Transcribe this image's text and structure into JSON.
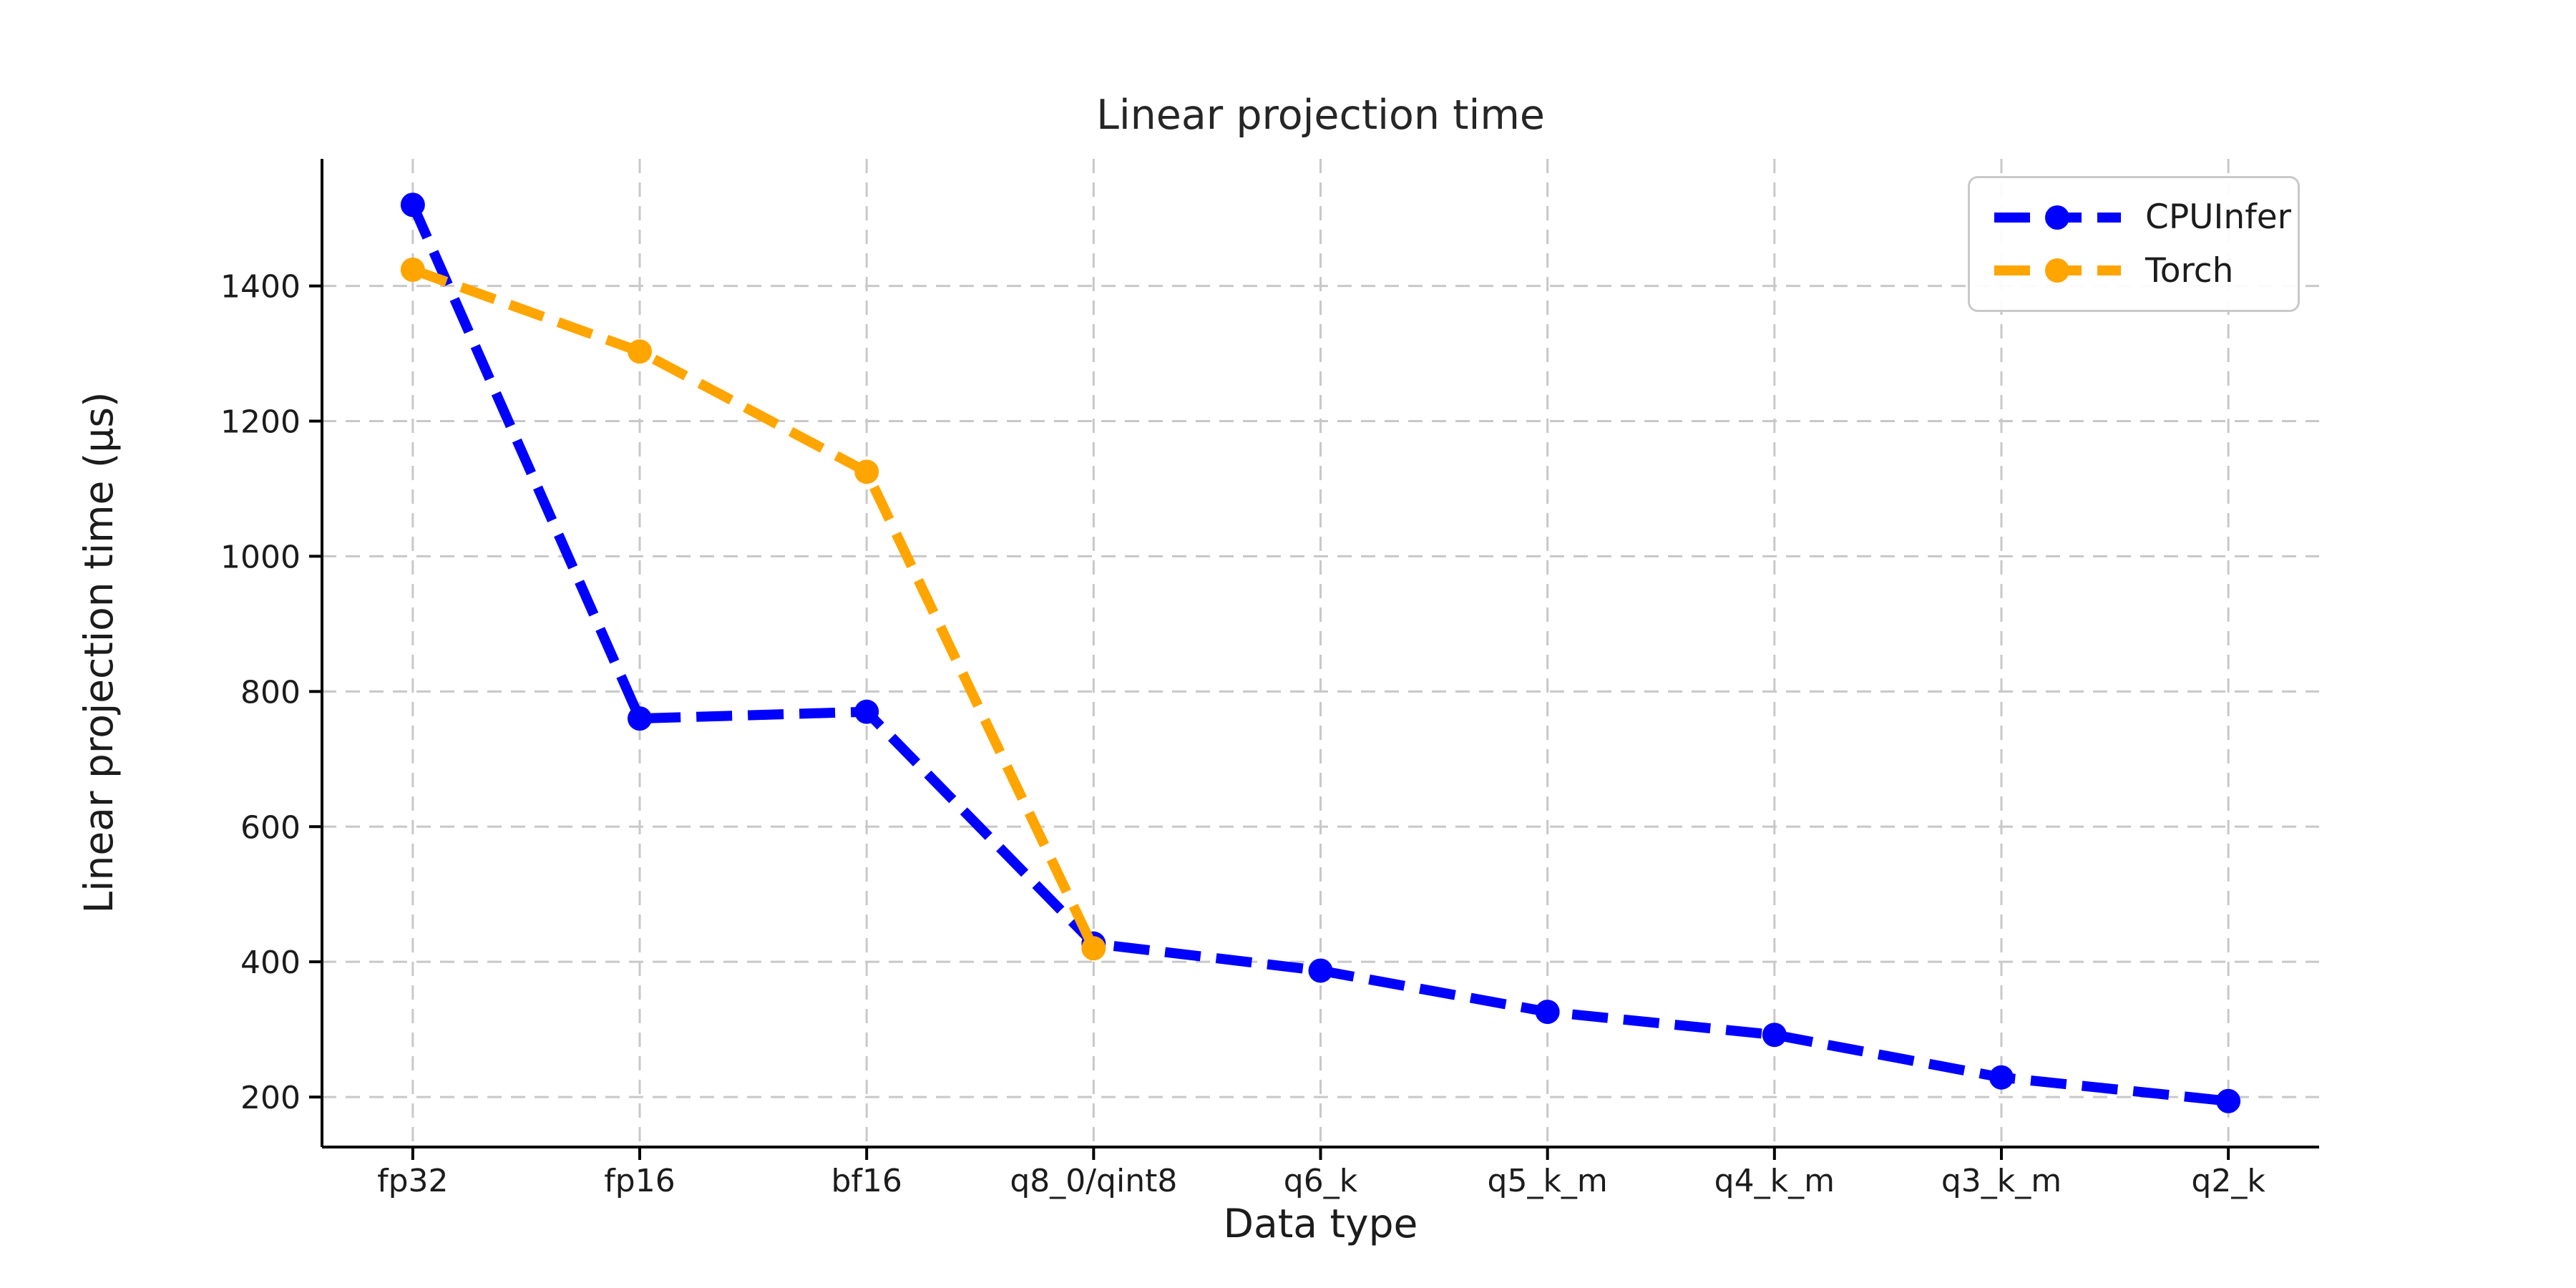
{
  "chart_data": {
    "type": "line",
    "title": "Linear projection time",
    "xlabel": "Data type",
    "ylabel": "Linear projection time (μs)",
    "categories": [
      "fp32",
      "fp16",
      "bf16",
      "q8_0/qint8",
      "q6_k",
      "q5_k_m",
      "q4_k_m",
      "q3_k_m",
      "q2_k"
    ],
    "series": [
      {
        "name": "CPUInfer",
        "color": "#0000ff",
        "linestyle": "dashed",
        "marker": "circle",
        "values": [
          1520,
          760,
          770,
          427,
          387,
          326,
          292,
          229,
          194
        ]
      },
      {
        "name": "Torch",
        "color": "#ffa500",
        "linestyle": "dashed",
        "marker": "circle",
        "values": [
          1424,
          1303,
          1125,
          420,
          null,
          null,
          null,
          null,
          null
        ]
      }
    ],
    "yticks": [
      200,
      400,
      600,
      800,
      1000,
      1200,
      1400
    ],
    "ylim": [
      126,
      1588
    ],
    "grid": true,
    "grid_color": "#c8c8c8",
    "spine_color": "#000000",
    "text_color": "#1c1c1c",
    "legend_position": "upper right"
  }
}
